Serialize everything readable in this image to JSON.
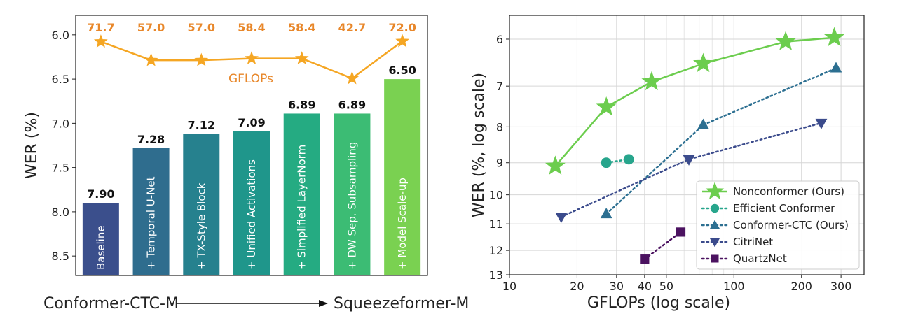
{
  "chart_data": [
    {
      "type": "bar",
      "ylabel": "WER (%)",
      "y_inverted": true,
      "ylim": [
        8.72,
        5.78
      ],
      "yticks": [
        "6.0",
        "6.5",
        "7.0",
        "7.5",
        "8.0",
        "8.5"
      ],
      "categories": [
        "Baseline",
        "+ Temporal U-Net",
        "+ TX-Style Block",
        "+ Unified Activations",
        "+ Simplified LayerNorm",
        "+ DW Sep. Subsampling",
        "+ Model Scale-up"
      ],
      "values": [
        7.9,
        7.28,
        7.12,
        7.09,
        6.89,
        6.89,
        6.5
      ],
      "value_labels": [
        "7.90",
        "7.28",
        "7.12",
        "7.09",
        "6.89",
        "6.89",
        "6.50"
      ],
      "bar_colors": [
        "#3b4f8c",
        "#2f6d8e",
        "#26818e",
        "#1f968b",
        "#25ab82",
        "#3cbc74",
        "#7ad151"
      ],
      "overlay_line": {
        "name": "GFLOPs",
        "color": "#f5a623",
        "values": [
          71.7,
          57.0,
          57.0,
          58.4,
          58.4,
          42.7,
          72.0
        ],
        "labels": [
          "71.7",
          "57.0",
          "57.0",
          "58.4",
          "58.4",
          "42.7",
          "72.0"
        ]
      },
      "bottom_annotation": {
        "left": "Conformer-CTC-M",
        "right": "Squeezeformer-M"
      }
    },
    {
      "type": "line",
      "xlabel": "GFLOPs (log scale)",
      "ylabel": "WER (%, log scale)",
      "x_scale": "log",
      "y_scale": "log",
      "y_inverted": true,
      "xlim": [
        10,
        380
      ],
      "ylim": [
        13,
        5.55
      ],
      "xticks": [
        10,
        20,
        30,
        40,
        50,
        100,
        200,
        300
      ],
      "xtick_labels": [
        "10",
        "20",
        "30",
        "40",
        "50",
        "100",
        "200",
        "300"
      ],
      "yticks": [
        6,
        7,
        8,
        9,
        10,
        11,
        12,
        13
      ],
      "ytick_labels": [
        "6",
        "7",
        "8",
        "9",
        "10",
        "11",
        "12",
        "13"
      ],
      "grid": true,
      "legend_position": "bottom-right",
      "series": [
        {
          "name": "Nonconformer (Ours)",
          "color": "#6ccd4e",
          "marker": "star",
          "style": "solid",
          "x": [
            16,
            27,
            43,
            73,
            170,
            280
          ],
          "y": [
            9.1,
            7.5,
            6.9,
            6.5,
            6.05,
            5.97
          ]
        },
        {
          "name": "Efficient Conformer",
          "color": "#27a58c",
          "marker": "circle",
          "style": "dotted",
          "x": [
            27,
            34
          ],
          "y": [
            9.0,
            8.9
          ]
        },
        {
          "name": "Conformer-CTC (Ours)",
          "color": "#2c6f91",
          "marker": "triangle-up",
          "style": "dotted",
          "x": [
            27,
            73,
            285
          ],
          "y": [
            10.65,
            7.95,
            6.6
          ]
        },
        {
          "name": "CitriNet",
          "color": "#3b4b8c",
          "marker": "triangle-down",
          "style": "dotted",
          "x": [
            17,
            63,
            245
          ],
          "y": [
            10.75,
            8.9,
            7.9
          ]
        },
        {
          "name": "QuartzNet",
          "color": "#4b1260",
          "marker": "square",
          "style": "dotted",
          "x": [
            40,
            58
          ],
          "y": [
            12.35,
            11.3
          ]
        }
      ]
    }
  ]
}
